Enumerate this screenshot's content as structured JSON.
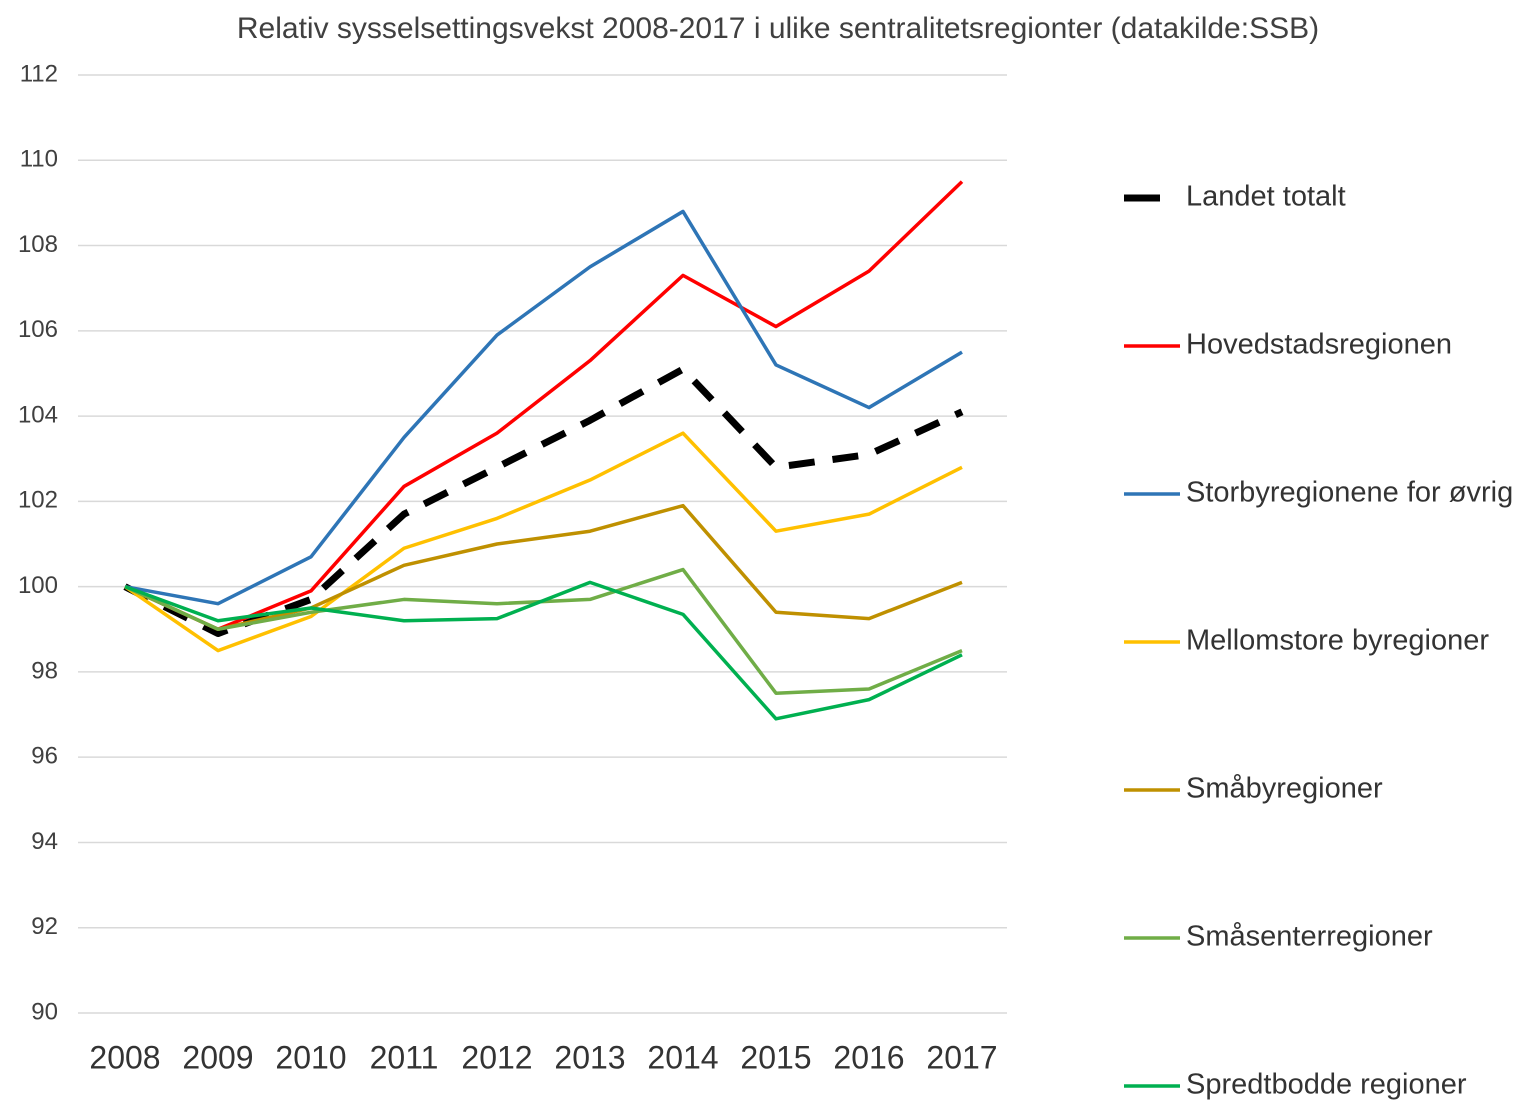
{
  "chart_data": {
    "type": "line",
    "title": "Relativ sysselsettingsvekst 2008-2017 i ulike sentralitetsregionter (datakilde:SSB)",
    "categories": [
      "2008",
      "2009",
      "2010",
      "2011",
      "2012",
      "2013",
      "2014",
      "2015",
      "2016",
      "2017"
    ],
    "series": [
      {
        "name": "Landet totalt",
        "color": "#000000",
        "dashed": true,
        "values": [
          100,
          98.9,
          99.7,
          101.7,
          102.8,
          103.9,
          105.1,
          102.8,
          103.1,
          104.1
        ]
      },
      {
        "name": "Hovedstadsregionen",
        "color": "#ff0000",
        "values": [
          100,
          99.0,
          99.9,
          102.35,
          103.6,
          105.3,
          107.3,
          106.1,
          107.4,
          109.5
        ]
      },
      {
        "name": "Storbyregionene for øvrig",
        "color": "#2e75b6",
        "values": [
          100,
          99.6,
          100.7,
          103.5,
          105.9,
          107.5,
          108.8,
          105.2,
          104.2,
          105.5
        ]
      },
      {
        "name": "Mellomstore byregioner",
        "color": "#ffc000",
        "values": [
          100,
          98.5,
          99.3,
          100.9,
          101.6,
          102.5,
          103.6,
          101.3,
          101.7,
          102.8
        ]
      },
      {
        "name": "Småbyregioner",
        "color": "#bf9000",
        "values": [
          100,
          99.0,
          99.5,
          100.5,
          101.0,
          101.3,
          101.9,
          99.4,
          99.25,
          100.1
        ]
      },
      {
        "name": "Småsenterregioner",
        "color": "#70ad47",
        "values": [
          100,
          99.0,
          99.4,
          99.7,
          99.6,
          99.7,
          100.4,
          97.5,
          97.6,
          98.5
        ]
      },
      {
        "name": "Spredtbodde regioner",
        "color": "#00b050",
        "values": [
          100,
          99.2,
          99.5,
          99.2,
          99.25,
          100.1,
          99.35,
          96.9,
          97.35,
          98.4
        ]
      }
    ],
    "ylim": [
      90,
      112
    ],
    "yticks": [
      90,
      92,
      94,
      96,
      98,
      100,
      102,
      104,
      106,
      108,
      110,
      112
    ],
    "grid": true,
    "legend": "right"
  }
}
